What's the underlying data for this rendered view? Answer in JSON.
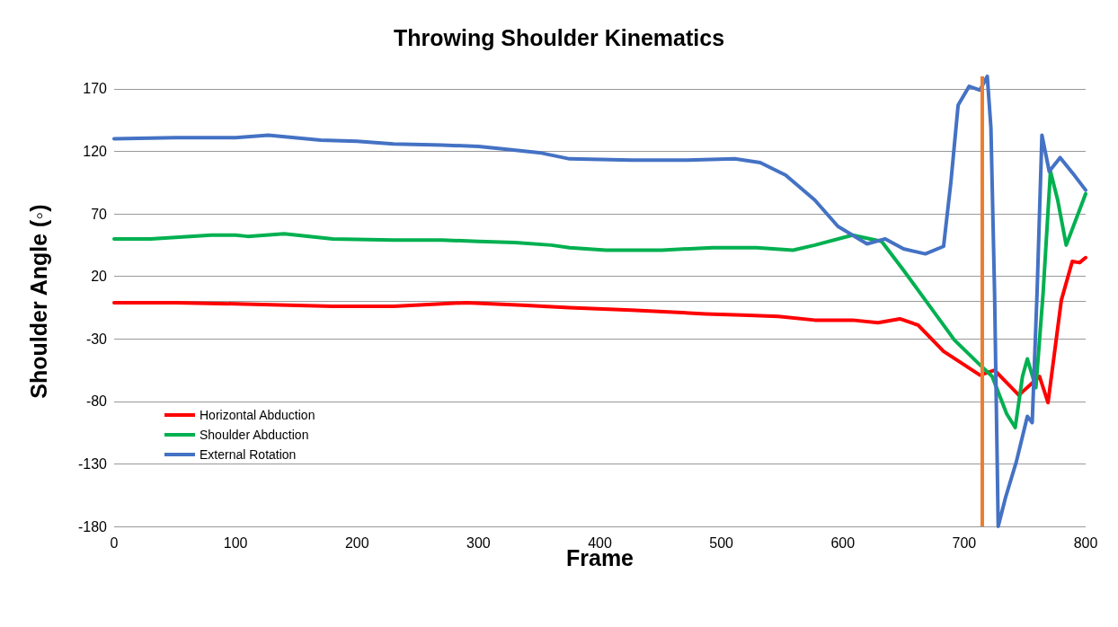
{
  "chart_data": {
    "type": "line",
    "title": "Throwing Shoulder Kinematics",
    "xlabel": "Frame",
    "ylabel": "Shoulder Angle (◦)",
    "xlim": [
      0,
      800
    ],
    "xticks": [
      0,
      100,
      200,
      300,
      400,
      500,
      600,
      700,
      800
    ],
    "ylim": [
      -180,
      180
    ],
    "yticks": [
      -180,
      -130,
      -80,
      -30,
      20,
      70,
      120,
      170
    ],
    "grid": "y",
    "legend": "bottom left",
    "marker": "none",
    "line_style": "solid",
    "ref_lines": [
      {
        "axis": "x",
        "value": 715,
        "color": "#ed7d31"
      }
    ],
    "series": [
      {
        "name": "Horizontal Abduction",
        "color": "#ff0000",
        "x": [
          0,
          50,
          100,
          180,
          230,
          290,
          336,
          375,
          426,
          487,
          517,
          547,
          577,
          608,
          629,
          647,
          662,
          683,
          713,
          725,
          745,
          762,
          769,
          780,
          789,
          795,
          800
        ],
        "values": [
          -1,
          -1,
          -2,
          -4,
          -4,
          -1,
          -3,
          -5,
          -7,
          -10,
          -11,
          -12,
          -15,
          -15,
          -17,
          -14,
          -19,
          -40,
          -59,
          -55,
          -75,
          -60,
          -81,
          1,
          32,
          31,
          35
        ]
      },
      {
        "name": "Shoulder Abduction",
        "color": "#00b050",
        "x": [
          0,
          30,
          80,
          100,
          110,
          140,
          180,
          230,
          270,
          300,
          330,
          360,
          375,
          405,
          451,
          493,
          529,
          559,
          577,
          608,
          632,
          650,
          668,
          692,
          711,
          723,
          735,
          742,
          748,
          752,
          759,
          765,
          771,
          777,
          784,
          800
        ],
        "values": [
          50,
          50,
          53,
          53,
          52,
          54,
          50,
          49,
          49,
          48,
          47,
          45,
          43,
          41,
          41,
          43,
          43,
          41,
          45,
          53,
          48,
          25,
          1,
          -31,
          -49,
          -60,
          -90,
          -101,
          -60,
          -46,
          -69,
          7,
          104,
          81,
          45,
          86
        ]
      },
      {
        "name": "External Rotation",
        "color": "#4472c4",
        "x": [
          0,
          50,
          100,
          127,
          170,
          200,
          230,
          270,
          300,
          320,
          350,
          375,
          426,
          472,
          511,
          532,
          553,
          577,
          596,
          620,
          635,
          650,
          668,
          683,
          689,
          695,
          704,
          713,
          719,
          722,
          725,
          728,
          734,
          743,
          752,
          756,
          760,
          764,
          770,
          779,
          789,
          800
        ],
        "values": [
          130,
          131,
          131,
          133,
          129,
          128,
          126,
          125,
          124,
          122,
          119,
          114,
          113,
          113,
          114,
          111,
          101,
          81,
          60,
          46,
          50,
          42,
          38,
          44,
          95,
          157,
          172,
          169,
          180,
          139,
          7,
          -180,
          -157,
          -128,
          -92,
          -97,
          7,
          133,
          104,
          115,
          103,
          89
        ]
      }
    ]
  }
}
